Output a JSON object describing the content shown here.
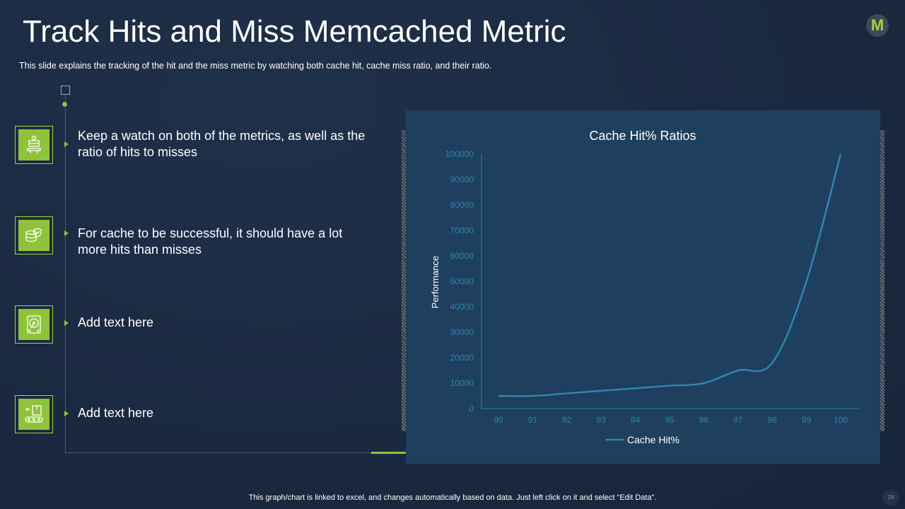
{
  "slide": {
    "title": "Track Hits and Miss Memcached Metric",
    "subtitle": "This slide explains the tracking of the hit and the miss metric by watching both cache hit, cache miss ratio, and their ratio.",
    "logo_letter": "M",
    "footer": "This graph/chart is linked to excel,  and changes automatically based on data. Just left click on it and select “Edit Data”.",
    "page_number": "28"
  },
  "bullets": [
    {
      "icon": "presentation-icon",
      "text": "Keep a watch on both of the metrics, as well as the ratio of hits to misses"
    },
    {
      "icon": "secure-database-icon",
      "text": "For cache to be successful, it should have a lot more hits than misses"
    },
    {
      "icon": "hard-drive-icon",
      "text": "Add text here"
    },
    {
      "icon": "conveyor-box-icon",
      "text": "Add text here"
    }
  ],
  "colors": {
    "accent_green": "#8fc33a",
    "chart_background": "#1e3f5e",
    "series_line": "#2e86ab",
    "axis_text": "#2e86ab"
  },
  "chart_data": {
    "type": "line",
    "title": "Cache Hit% Ratios",
    "xlabel": "",
    "ylabel": "Performance",
    "x": [
      90,
      91,
      92,
      93,
      94,
      95,
      96,
      97,
      98,
      99,
      100
    ],
    "y_ticks": [
      0,
      10000,
      20000,
      30000,
      40000,
      50000,
      60000,
      70000,
      80000,
      90000,
      100000
    ],
    "ylim": [
      0,
      100000
    ],
    "series": [
      {
        "name": "Cache Hit%",
        "values": [
          5000,
          5000,
          6000,
          7000,
          8000,
          9000,
          10000,
          15000,
          18000,
          50000,
          100000
        ]
      }
    ],
    "legend": "bottom",
    "grid": false,
    "smooth": true
  }
}
